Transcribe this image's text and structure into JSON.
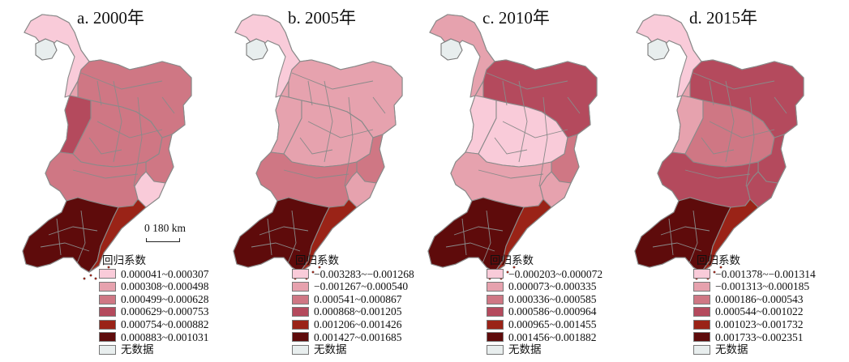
{
  "legend_title": "回归系数",
  "no_data_label": "无数据",
  "scale_bar": {
    "label": "0  180 km"
  },
  "colors": [
    "#f9cbd9",
    "#e6a2ae",
    "#cf7784",
    "#b44a5d",
    "#9a2317",
    "#5e0b0b"
  ],
  "no_data_color": "#e8eeee",
  "panels": [
    {
      "title": "a. 2000年",
      "classes": [
        "0.000041~0.000307",
        "0.000308~0.000498",
        "0.000499~0.000628",
        "0.000629~0.000753",
        "0.000754~0.000882",
        "0.000883~0.001031"
      ],
      "zone_classes": {
        "north": 0,
        "northeast": 2,
        "west": 3,
        "center": 2,
        "east": 2,
        "southeast": 0,
        "south": 2,
        "liaoning": 5,
        "coast": 4
      }
    },
    {
      "title": "b. 2005年",
      "classes": [
        "−0.003283~−0.001268",
        "−0.001267~0.000540",
        "0.000541~0.000867",
        "0.000868~0.001205",
        "0.001206~0.001426",
        "0.001427~0.001685"
      ],
      "zone_classes": {
        "north": 0,
        "northeast": 1,
        "west": 1,
        "center": 1,
        "east": 2,
        "southeast": 1,
        "south": 2,
        "liaoning": 5,
        "coast": 4
      }
    },
    {
      "title": "c. 2010年",
      "classes": [
        "−0.000203~0.000072",
        "0.000073~0.000335",
        "0.000336~0.000585",
        "0.000586~0.000964",
        "0.000965~0.001455",
        "0.001456~0.001882"
      ],
      "zone_classes": {
        "north": 1,
        "northeast": 3,
        "west": 0,
        "center": 0,
        "east": 2,
        "southeast": 1,
        "south": 1,
        "liaoning": 5,
        "coast": 4
      }
    },
    {
      "title": "d. 2015年",
      "classes": [
        "−0.001378~−0.001314",
        "−0.001313~0.000185",
        "0.000186~0.000543",
        "0.000544~0.001022",
        "0.001023~0.001732",
        "0.001733~0.002351"
      ],
      "zone_classes": {
        "north": 0,
        "northeast": 3,
        "west": 1,
        "center": 2,
        "east": 3,
        "southeast": 3,
        "south": 3,
        "liaoning": 5,
        "coast": 4
      }
    }
  ]
}
